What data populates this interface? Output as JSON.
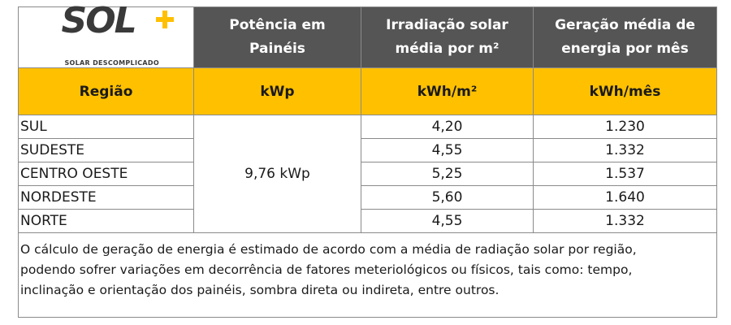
{
  "logo": {
    "word": "SOL",
    "tagline": "SOLAR DESCOMPLICADO",
    "accent_color": "#ffc000",
    "icon": "plus-icon"
  },
  "header": {
    "col2": [
      "Potência em",
      "Painéis"
    ],
    "col3": [
      "Irradiação solar",
      "média por m²"
    ],
    "col4": [
      "Geração média de",
      "energia por mês"
    ]
  },
  "units": {
    "region": "Região",
    "power": "kWp",
    "irradiation": "kWh/m²",
    "generation": "kWh/mês"
  },
  "power_value": "9,76 kWp",
  "rows": [
    {
      "region": "SUL",
      "irradiation": "4,20",
      "generation": "1.230"
    },
    {
      "region": "SUDESTE",
      "irradiation": "4,55",
      "generation": "1.332"
    },
    {
      "region": "CENTRO OESTE",
      "irradiation": "5,25",
      "generation": "1.537"
    },
    {
      "region": "NORDESTE",
      "irradiation": "5,60",
      "generation": "1.640"
    },
    {
      "region": "NORTE",
      "irradiation": "4,55",
      "generation": "1.332"
    }
  ],
  "note": [
    "O cálculo de geração de energia é estimado de acordo com a média de radiação solar por região,",
    "podendo sofrer variações em decorrência de fatores meteriológicos ou físicos, tais como: tempo,",
    "inclinação e orientação dos painéis, sombra direta ou indireta, entre outros."
  ],
  "colors": {
    "header_bg": "#555555",
    "units_bg": "#ffc000",
    "border": "#8a8a8a"
  }
}
